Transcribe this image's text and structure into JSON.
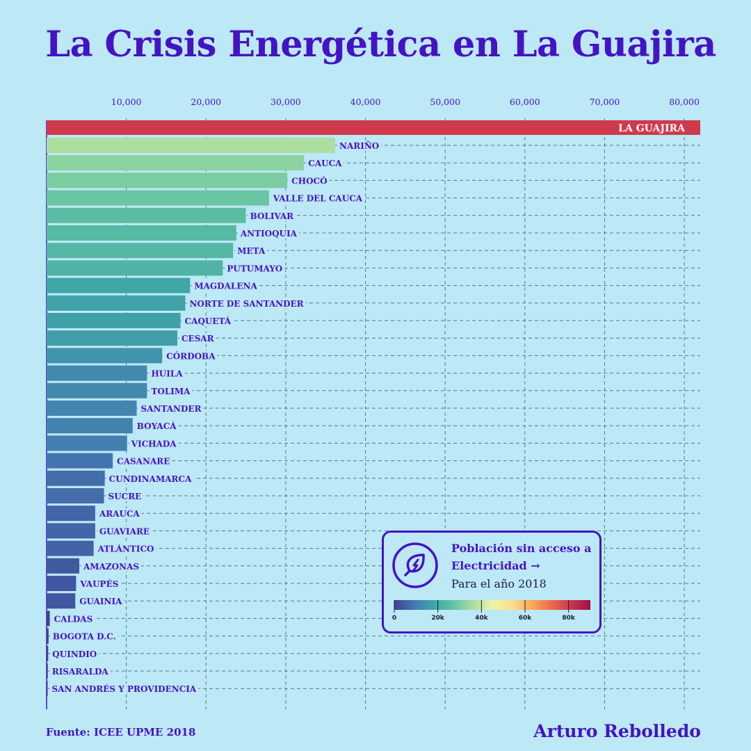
{
  "title": "La Crisis Energética en La Guajira",
  "chart_data": {
    "type": "bar",
    "orientation": "horizontal",
    "title": "La Crisis Energética en La Guajira",
    "xlabel": "",
    "ylabel": "",
    "xlim": [
      0,
      82000
    ],
    "x_ticks": [
      10000,
      20000,
      30000,
      40000,
      50000,
      60000,
      70000,
      80000
    ],
    "x_tick_labels": [
      "10,000",
      "20,000",
      "30,000",
      "40,000",
      "50,000",
      "60,000",
      "70,000",
      "80,000"
    ],
    "grid": true,
    "highlight": {
      "name": "LA GUAJIRA",
      "value": 82000,
      "color": "#cf3a4d"
    },
    "categories": [
      "NARIÑO",
      "CAUCA",
      "CHOCÓ",
      "VALLE DEL CAUCA",
      "BOLIVAR",
      "ANTIOQUIA",
      "META",
      "PUTUMAYO",
      "MAGDALENA",
      "NORTE DE SANTANDER",
      "CAQUETÁ",
      "CESAR",
      "CÓRDOBA",
      "HUILA",
      "TOLIMA",
      "SANTANDER",
      "BOYACÁ",
      "VICHADA",
      "CASANARE",
      "CUNDINAMARCA",
      "SUCRE",
      "ARAUCA",
      "GUAVIARE",
      "ATLÁNTICO",
      "AMAZONAS",
      "VAUPÉS",
      "GUAINIA",
      "CALDAS",
      "BOGOTA D.C.",
      "QUINDIO",
      "RISARALDA",
      "SAN ANDRÉS Y PROVIDENCIA"
    ],
    "values": [
      36200,
      32300,
      30200,
      27900,
      25000,
      23800,
      23400,
      22100,
      18000,
      17400,
      16800,
      16400,
      14500,
      12600,
      12600,
      11300,
      10800,
      10100,
      8300,
      7300,
      7200,
      6100,
      6100,
      5900,
      4100,
      3700,
      3600,
      400,
      250,
      200,
      150,
      100
    ]
  },
  "legend": {
    "title": "Población sin acceso a Electricidad",
    "arrow": "→",
    "subtitle": "Para el año 2018",
    "icon": "leaf-lightning-icon",
    "colorscale_domain": [
      0,
      90000
    ],
    "colorscale_ticks": [
      "0",
      "20k",
      "40k",
      "60k",
      "80k"
    ],
    "colors": [
      "#3d3f95",
      "#4478b0",
      "#3fa6a8",
      "#62c3a2",
      "#a9dda0",
      "#eef5a6",
      "#fbe08f",
      "#f8a95c",
      "#ee6c4a",
      "#cc3553",
      "#a11048"
    ]
  },
  "footer": {
    "source": "Fuente: ICEE UPME 2018",
    "author": "Arturo Rebolledo"
  }
}
